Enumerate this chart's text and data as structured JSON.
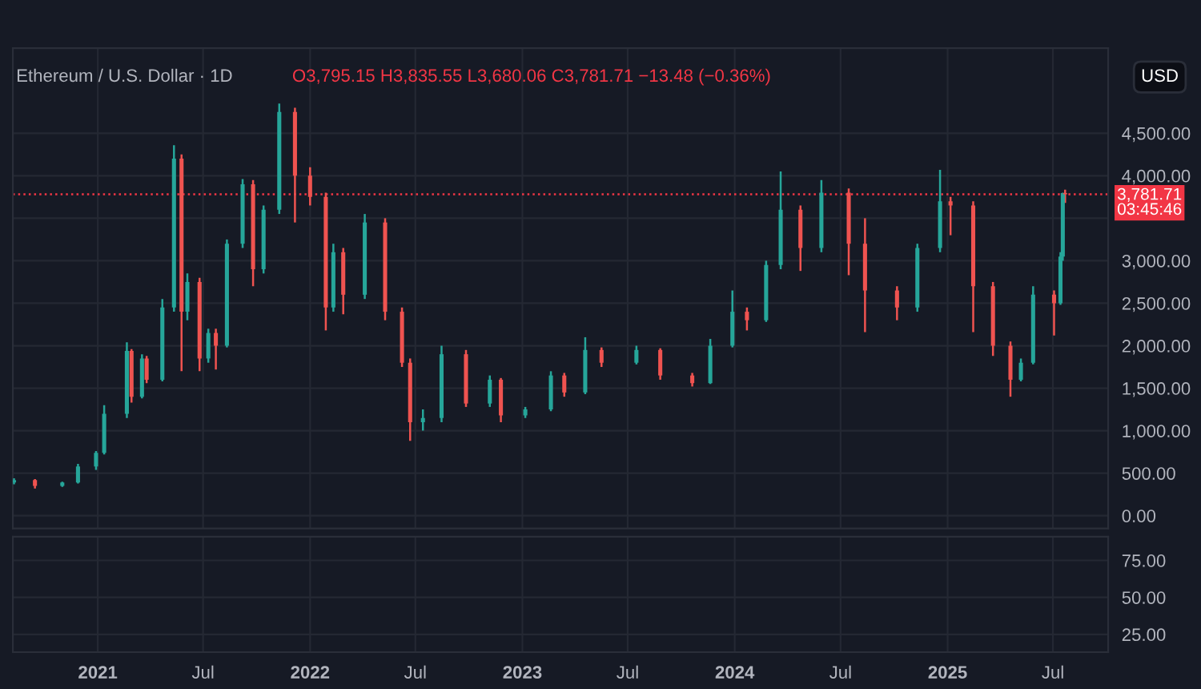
{
  "chart_data": [
    {
      "type": "candlestick",
      "title": "Ethereum / U.S. Dollar · 1D",
      "annotations": [
        "O3,795.15 H3,835.55 L3,680.06 C3,781.71 −13.48 (−0.36%)",
        "USD"
      ],
      "x": [
        "2020-08-10",
        "2020-09-15",
        "2020-11-01",
        "2020-11-28",
        "2020-12-29",
        "2021-01-12",
        "2021-02-20",
        "2021-02-28",
        "2021-03-18",
        "2021-03-26",
        "2021-04-22",
        "2021-05-12",
        "2021-05-25",
        "2021-06-04",
        "2021-06-25",
        "2021-07-10",
        "2021-07-23",
        "2021-08-11",
        "2021-09-07",
        "2021-09-25",
        "2021-10-13",
        "2021-11-09",
        "2021-12-06",
        "2022-01-01",
        "2022-01-28",
        "2022-02-10",
        "2022-02-27",
        "2022-04-05",
        "2022-05-10",
        "2022-06-08",
        "2022-06-22",
        "2022-07-14",
        "2022-08-15",
        "2022-09-26",
        "2022-11-06",
        "2022-11-25",
        "2023-01-06",
        "2023-02-19",
        "2023-03-14",
        "2023-04-19",
        "2023-05-17",
        "2023-07-16",
        "2023-08-26",
        "2023-10-20",
        "2023-11-20",
        "2023-12-28",
        "2024-01-22",
        "2024-02-24",
        "2024-03-20",
        "2024-04-23",
        "2024-05-29",
        "2024-07-15",
        "2024-08-12",
        "2024-10-06",
        "2024-11-10",
        "2024-12-19",
        "2025-01-06",
        "2025-02-14",
        "2025-03-20",
        "2025-04-19",
        "2025-05-07",
        "2025-05-28",
        "2025-07-03",
        "2025-07-14",
        "2025-07-18",
        "2025-07-22"
      ],
      "ohlc": [
        [
          390,
          440,
          370,
          420
        ],
        [
          420,
          430,
          320,
          350
        ],
        [
          350,
          400,
          340,
          390
        ],
        [
          390,
          610,
          380,
          580
        ],
        [
          580,
          760,
          540,
          740
        ],
        [
          740,
          1300,
          720,
          1200
        ],
        [
          1200,
          2040,
          1150,
          1940
        ],
        [
          1940,
          1960,
          1330,
          1400
        ],
        [
          1400,
          1900,
          1380,
          1850
        ],
        [
          1850,
          1880,
          1560,
          1600
        ],
        [
          1600,
          2550,
          1580,
          2450
        ],
        [
          2450,
          4360,
          2400,
          4200
        ],
        [
          4200,
          4250,
          1700,
          2400
        ],
        [
          2400,
          2850,
          2300,
          2750
        ],
        [
          2750,
          2800,
          1700,
          1850
        ],
        [
          1850,
          2200,
          1800,
          2150
        ],
        [
          2150,
          2200,
          1720,
          2000
        ],
        [
          2000,
          3250,
          1980,
          3200
        ],
        [
          3200,
          3960,
          3150,
          3900
        ],
        [
          3900,
          3950,
          2700,
          2900
        ],
        [
          2900,
          3650,
          2850,
          3600
        ],
        [
          3600,
          4850,
          3550,
          4750
        ],
        [
          4750,
          4800,
          3450,
          4000
        ],
        [
          4000,
          4100,
          3650,
          3750
        ],
        [
          3750,
          3800,
          2180,
          2450
        ],
        [
          2450,
          3200,
          2400,
          3100
        ],
        [
          3100,
          3150,
          2370,
          2600
        ],
        [
          2600,
          3550,
          2550,
          3450
        ],
        [
          3450,
          3500,
          2300,
          2400
        ],
        [
          2400,
          2450,
          1750,
          1800
        ],
        [
          1800,
          1850,
          880,
          1100
        ],
        [
          1100,
          1250,
          1000,
          1150
        ],
        [
          1150,
          2000,
          1100,
          1900
        ],
        [
          1900,
          1950,
          1280,
          1320
        ],
        [
          1320,
          1650,
          1280,
          1600
        ],
        [
          1600,
          1620,
          1100,
          1180
        ],
        [
          1180,
          1280,
          1150,
          1250
        ],
        [
          1250,
          1700,
          1230,
          1650
        ],
        [
          1650,
          1680,
          1400,
          1450
        ],
        [
          1450,
          2100,
          1430,
          1950
        ],
        [
          1950,
          1980,
          1750,
          1800
        ],
        [
          1800,
          2000,
          1780,
          1950
        ],
        [
          1950,
          1970,
          1600,
          1650
        ],
        [
          1650,
          1680,
          1520,
          1560
        ],
        [
          1560,
          2080,
          1550,
          2000
        ],
        [
          2000,
          2650,
          1980,
          2400
        ],
        [
          2400,
          2450,
          2180,
          2300
        ],
        [
          2300,
          3000,
          2280,
          2950
        ],
        [
          2950,
          4050,
          2900,
          3600
        ],
        [
          3600,
          3650,
          2880,
          3150
        ],
        [
          3150,
          3950,
          3100,
          3800
        ],
        [
          3800,
          3850,
          2830,
          3200
        ],
        [
          3200,
          3500,
          2160,
          2650
        ],
        [
          2650,
          2700,
          2300,
          2450
        ],
        [
          2450,
          3200,
          2400,
          3150
        ],
        [
          3150,
          4070,
          3100,
          3700
        ],
        [
          3700,
          3750,
          3300,
          3650
        ],
        [
          3650,
          3700,
          2160,
          2700
        ],
        [
          2700,
          2750,
          1880,
          2000
        ],
        [
          2000,
          2050,
          1400,
          1600
        ],
        [
          1600,
          1850,
          1580,
          1800
        ],
        [
          1800,
          2700,
          1780,
          2600
        ],
        [
          2600,
          2650,
          2120,
          2500
        ],
        [
          2500,
          3100,
          2480,
          3050
        ],
        [
          3050,
          3800,
          3000,
          3795.15
        ],
        [
          3795.15,
          3835.55,
          3680.06,
          3781.71
        ]
      ],
      "colors": [
        "#26a69a",
        "#ef5350",
        "#26a69a",
        "#26a69a",
        "#26a69a",
        "#26a69a",
        "#26a69a",
        "#ef5350",
        "#26a69a",
        "#ef5350",
        "#26a69a",
        "#26a69a",
        "#ef5350",
        "#26a69a",
        "#ef5350",
        "#26a69a",
        "#ef5350",
        "#26a69a",
        "#26a69a",
        "#ef5350",
        "#26a69a",
        "#26a69a",
        "#ef5350",
        "#ef5350",
        "#ef5350",
        "#26a69a",
        "#ef5350",
        "#26a69a",
        "#ef5350",
        "#ef5350",
        "#ef5350",
        "#26a69a",
        "#26a69a",
        "#ef5350",
        "#26a69a",
        "#ef5350",
        "#26a69a",
        "#26a69a",
        "#ef5350",
        "#26a69a",
        "#ef5350",
        "#26a69a",
        "#ef5350",
        "#ef5350",
        "#26a69a",
        "#26a69a",
        "#ef5350",
        "#26a69a",
        "#26a69a",
        "#ef5350",
        "#26a69a",
        "#ef5350",
        "#ef5350",
        "#ef5350",
        "#26a69a",
        "#26a69a",
        "#ef5350",
        "#ef5350",
        "#ef5350",
        "#ef5350",
        "#26a69a",
        "#26a69a",
        "#ef5350",
        "#26a69a",
        "#26a69a",
        "#ef5350"
      ],
      "xlim": [
        "2020-08-08",
        "2025-10-04"
      ],
      "xticks": [
        {
          "value": "2021-01-01",
          "label": null
        },
        {
          "value": "2021-07-01",
          "label": null
        },
        {
          "value": "2022-01-01",
          "label": null
        },
        {
          "value": "2022-07-01",
          "label": null
        },
        {
          "value": "2023-01-01",
          "label": null
        },
        {
          "value": "2023-07-01",
          "label": null
        },
        {
          "value": "2024-01-01",
          "label": null
        },
        {
          "value": "2024-07-01",
          "label": null
        },
        {
          "value": "2025-01-01",
          "label": null
        },
        {
          "value": "2025-07-01",
          "label": null
        }
      ],
      "ylim": [
        -150,
        5500
      ],
      "yticks": [
        {
          "value": 0,
          "label": "0.00"
        },
        {
          "value": 500,
          "label": "500.00"
        },
        {
          "value": 1000,
          "label": "1,000.00"
        },
        {
          "value": 1500,
          "label": "1,500.00"
        },
        {
          "value": 2000,
          "label": "2,000.00"
        },
        {
          "value": 2500,
          "label": "2,500.00"
        },
        {
          "value": 3000,
          "label": "3,000.00"
        },
        {
          "value": 3500,
          "label": null
        },
        {
          "value": 4000,
          "label": "4,000.00"
        },
        {
          "value": 4500,
          "label": "4,500.00"
        }
      ],
      "ref_lines": [
        {
          "axis": "y",
          "value": 3781.71,
          "label": "3,781.71\n03:45:46",
          "color": "#f23645",
          "line_style": "dotted"
        }
      ],
      "grid": true,
      "tick_labels": "y"
    },
    {
      "type": "line",
      "xlim": [
        "2020-08-08",
        "2025-10-04"
      ],
      "xticks": [
        {
          "value": "2021-01-01",
          "label": "2021"
        },
        {
          "value": "2021-07-01",
          "label": "Jul"
        },
        {
          "value": "2022-01-01",
          "label": "2022"
        },
        {
          "value": "2022-07-01",
          "label": "Jul"
        },
        {
          "value": "2023-01-01",
          "label": "2023"
        },
        {
          "value": "2023-07-01",
          "label": "Jul"
        },
        {
          "value": "2024-01-01",
          "label": "2024"
        },
        {
          "value": "2024-07-01",
          "label": "Jul"
        },
        {
          "value": "2025-01-01",
          "label": "2025"
        },
        {
          "value": "2025-07-01",
          "label": "Jul"
        }
      ],
      "ylim": [
        13,
        91
      ],
      "yticks": [
        {
          "value": 25,
          "label": "25.00"
        },
        {
          "value": 50,
          "label": "50.00"
        },
        {
          "value": 75,
          "label": "75.00"
        }
      ],
      "grid": true
    }
  ]
}
